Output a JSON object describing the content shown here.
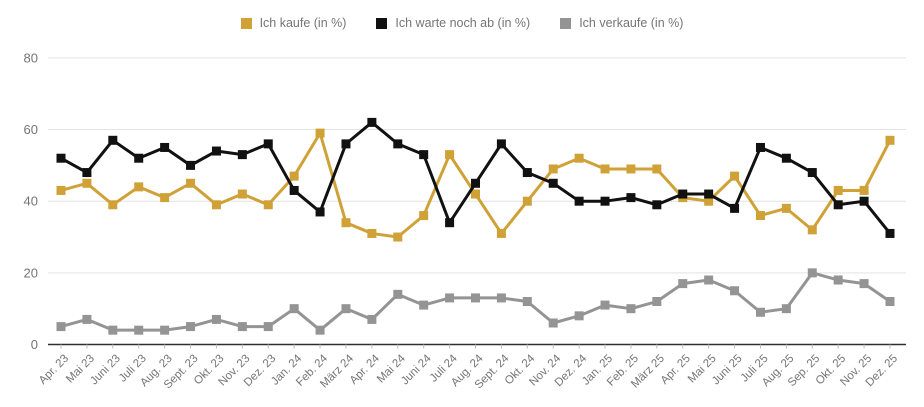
{
  "chart_data": {
    "type": "line",
    "title": "",
    "xlabel": "",
    "ylabel": "",
    "categories": [
      "Apr. 23",
      "Mai 23",
      "Juni 23",
      "Juli 23",
      "Aug. 23",
      "Sept. 23",
      "Okt. 23",
      "Nov. 23",
      "Dez. 23",
      "Jan. 24",
      "Feb. 24",
      "März 24",
      "Apr. 24",
      "Mai 24",
      "Juni 24",
      "Juli 24",
      "Aug. 24",
      "Sept. 24",
      "Okt. 24",
      "Nov. 24",
      "Dez. 24",
      "Jan. 25",
      "Feb. 25",
      "März 25",
      "Apr. 25",
      "Mai 25",
      "Juni 25",
      "Juli 25",
      "Aug. 25",
      "Sep. 25",
      "Okt. 25",
      "Nov. 25",
      "Dez. 25"
    ],
    "series": [
      {
        "name": "Ich kaufe (in %)",
        "color": "#CFA136",
        "values": [
          43,
          45,
          39,
          44,
          41,
          45,
          39,
          42,
          39,
          47,
          59,
          34,
          31,
          30,
          36,
          53,
          42,
          31,
          40,
          49,
          52,
          49,
          49,
          49,
          41,
          40,
          47,
          36,
          38,
          32,
          43,
          43,
          57
        ]
      },
      {
        "name": "Ich warte noch ab (in %)",
        "color": "#111111",
        "values": [
          52,
          48,
          57,
          52,
          55,
          50,
          54,
          53,
          56,
          43,
          37,
          56,
          62,
          56,
          53,
          34,
          45,
          56,
          48,
          45,
          40,
          40,
          41,
          39,
          42,
          42,
          38,
          55,
          52,
          48,
          39,
          40,
          31
        ]
      },
      {
        "name": "Ich verkaufe (in %)",
        "color": "#949494",
        "values": [
          5,
          7,
          4,
          4,
          4,
          5,
          7,
          5,
          5,
          10,
          4,
          10,
          7,
          14,
          11,
          13,
          13,
          13,
          12,
          6,
          8,
          11,
          10,
          12,
          17,
          18,
          15,
          9,
          10,
          20,
          18,
          17,
          12
        ]
      }
    ],
    "ylim": [
      0,
      80
    ],
    "y_ticks": [
      0,
      20,
      40,
      60,
      80
    ],
    "grid": true,
    "legend_position": "top",
    "marker_shape": "square",
    "x_tick_rotation_deg": 45
  },
  "colors": {
    "background": "#ffffff",
    "gridline": "#e3e3e3",
    "axis_line": "#2e2e2e",
    "tick_label": "#757575",
    "legend_text": "#757575"
  }
}
